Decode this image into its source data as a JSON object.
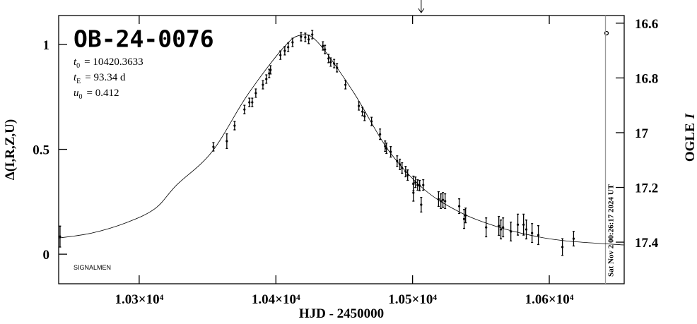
{
  "chart_data": {
    "type": "scatter",
    "title": "OB-24-0076",
    "parameters": [
      {
        "symbol": "t",
        "sub": "0",
        "text": "= 10420.3633"
      },
      {
        "symbol": "t",
        "sub": "E",
        "text": "= 93.34 d"
      },
      {
        "symbol": "u",
        "sub": "0",
        "text": "= 0.412"
      }
    ],
    "footnote": "SIGNALMEN",
    "x_label": "HJD - 2450000",
    "y_label": "Δ(I,R,Z,U)",
    "y2_label": [
      "OGLE",
      "I"
    ],
    "xlim": [
      10241.1,
      10654.8
    ],
    "ylim": [
      -0.141,
      1.138
    ],
    "y2lim": [
      17.552,
      16.572
    ],
    "xticks": [
      {
        "value": 10300,
        "label": "1.03×10⁴"
      },
      {
        "value": 10400,
        "label": "1.04×10⁴"
      },
      {
        "value": 10500,
        "label": "1.05×10⁴"
      },
      {
        "value": 10600,
        "label": "1.06×10⁴"
      }
    ],
    "yticks": [
      0,
      0.5,
      1
    ],
    "y2ticks": [
      16.6,
      16.8,
      17,
      17.2,
      17.4
    ],
    "color": "#000000",
    "x": [
      10242.1,
      10354.3,
      10364.1,
      10369.8,
      10377.0,
      10380.6,
      10382.7,
      10385.3,
      10390.5,
      10393.0,
      10395.1,
      10396.1,
      10403.3,
      10406.5,
      10409.0,
      10412.2,
      10418.4,
      10421.5,
      10424.0,
      10426.6,
      10434.4,
      10435.9,
      10438.5,
      10440.1,
      10442.6,
      10444.7,
      10450.9,
      10460.7,
      10463.3,
      10464.9,
      10470.0,
      10476.2,
      10479.9,
      10480.9,
      10484.0,
      10488.7,
      10490.7,
      10492.3,
      10494.9,
      10496.4,
      10500.6,
      10502.1,
      10503.7,
      10505.2,
      10507.8,
      10500.6,
      10506.3,
      10519.0,
      10520.7,
      10522.2,
      10523.8,
      10534.1,
      10537.7,
      10538.8,
      10553.8,
      10563.1,
      10564.6,
      10566.2,
      10571.9,
      10577.0,
      10581.2,
      10583.2,
      10587.4,
      10592.0,
      10609.6,
      10617.8
    ],
    "values": [
      0.084,
      0.512,
      0.539,
      0.613,
      0.69,
      0.724,
      0.724,
      0.768,
      0.808,
      0.835,
      0.862,
      0.879,
      0.949,
      0.97,
      0.987,
      1.01,
      1.037,
      1.034,
      1.024,
      1.047,
      0.993,
      0.976,
      0.933,
      0.916,
      0.909,
      0.889,
      0.808,
      0.707,
      0.68,
      0.657,
      0.633,
      0.572,
      0.515,
      0.505,
      0.488,
      0.444,
      0.428,
      0.411,
      0.394,
      0.377,
      0.337,
      0.343,
      0.33,
      0.327,
      0.33,
      0.293,
      0.236,
      0.263,
      0.253,
      0.259,
      0.253,
      0.229,
      0.168,
      0.185,
      0.128,
      0.135,
      0.118,
      0.128,
      0.108,
      0.141,
      0.141,
      0.118,
      0.101,
      0.091,
      0.034,
      0.074
    ],
    "errors": [
      0.05,
      0.02,
      0.035,
      0.02,
      0.02,
      0.02,
      0.02,
      0.02,
      0.02,
      0.02,
      0.02,
      0.02,
      0.02,
      0.02,
      0.02,
      0.02,
      0.02,
      0.02,
      0.02,
      0.02,
      0.02,
      0.02,
      0.02,
      0.02,
      0.02,
      0.02,
      0.02,
      0.02,
      0.02,
      0.02,
      0.02,
      0.025,
      0.025,
      0.025,
      0.025,
      0.025,
      0.025,
      0.025,
      0.025,
      0.025,
      0.035,
      0.025,
      0.025,
      0.025,
      0.025,
      0.04,
      0.035,
      0.035,
      0.035,
      0.035,
      0.035,
      0.035,
      0.045,
      0.035,
      0.045,
      0.045,
      0.045,
      0.045,
      0.045,
      0.05,
      0.05,
      0.045,
      0.045,
      0.045,
      0.04,
      0.035
    ],
    "model": {
      "x": [
        10241.1,
        10265.4,
        10291.2,
        10311.9,
        10327.4,
        10353.2,
        10379.1,
        10404.9,
        10417.8,
        10430.7,
        10456.6,
        10482.4,
        10508.3,
        10534.1,
        10560.0,
        10585.8,
        10611.6,
        10654.5
      ],
      "values": [
        0.077,
        0.101,
        0.152,
        0.219,
        0.33,
        0.488,
        0.758,
        0.98,
        1.044,
        1.01,
        0.774,
        0.495,
        0.31,
        0.202,
        0.135,
        0.091,
        0.064,
        0.044
      ]
    },
    "arrow_x": 10506.3,
    "now_line": {
      "x": 10641.1,
      "label": "Sat Nov  2 00:26:17 2024 UT",
      "color": "#999999"
    }
  }
}
